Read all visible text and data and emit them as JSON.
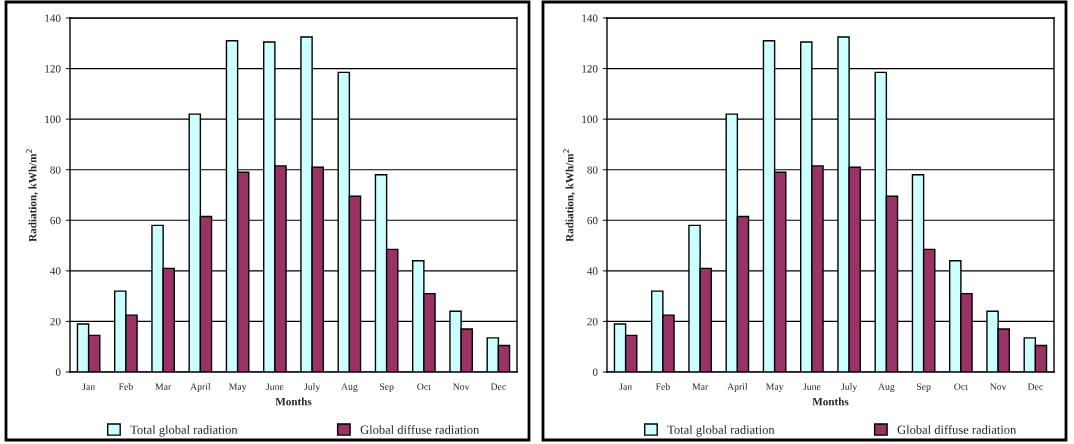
{
  "chart_data": [
    {
      "type": "bar",
      "xlabel": "Months",
      "ylabel": "Radiation, kWh/m$^{2}$",
      "categories": [
        "Jan",
        "Feb",
        "Mar",
        "April",
        "May",
        "June",
        "July",
        "Aug",
        "Sep",
        "Oct",
        "Nov",
        "Dec"
      ],
      "series": [
        {
          "name": "Total global radiation",
          "color": "#ccffff",
          "values": [
            19,
            32,
            58,
            102,
            131,
            130.5,
            132.5,
            118.5,
            78,
            44,
            24,
            13.5
          ]
        },
        {
          "name": "Global diffuse radiation",
          "color": "#993366",
          "values": [
            14.5,
            22.5,
            41,
            61.5,
            79,
            81.5,
            81,
            69.5,
            48.5,
            31,
            17,
            10.5
          ]
        }
      ],
      "ylim": [
        0,
        140
      ],
      "yticks": [
        0,
        20,
        40,
        60,
        80,
        100,
        120,
        140
      ],
      "grid": "y",
      "legend": "bottom"
    },
    {
      "type": "bar",
      "xlabel": "Months",
      "ylabel": "Radiation, kWh/m$^{2}$",
      "categories": [
        "Jan",
        "Feb",
        "Mar",
        "April",
        "May",
        "June",
        "July",
        "Aug",
        "Sep",
        "Oct",
        "Nov",
        "Dec"
      ],
      "series": [
        {
          "name": "Total global radiation",
          "color": "#ccffff",
          "values": [
            19,
            32,
            58,
            102,
            131,
            130.5,
            132.5,
            118.5,
            78,
            44,
            24,
            13.5
          ]
        },
        {
          "name": "Global diffuse radiation",
          "color": "#993366",
          "values": [
            14.5,
            22.5,
            41,
            61.5,
            79,
            81.5,
            81,
            69.5,
            48.5,
            31,
            17,
            10.5
          ]
        }
      ],
      "ylim": [
        0,
        140
      ],
      "yticks": [
        0,
        20,
        40,
        60,
        80,
        100,
        120,
        140
      ],
      "grid": "y",
      "legend": "bottom"
    }
  ]
}
